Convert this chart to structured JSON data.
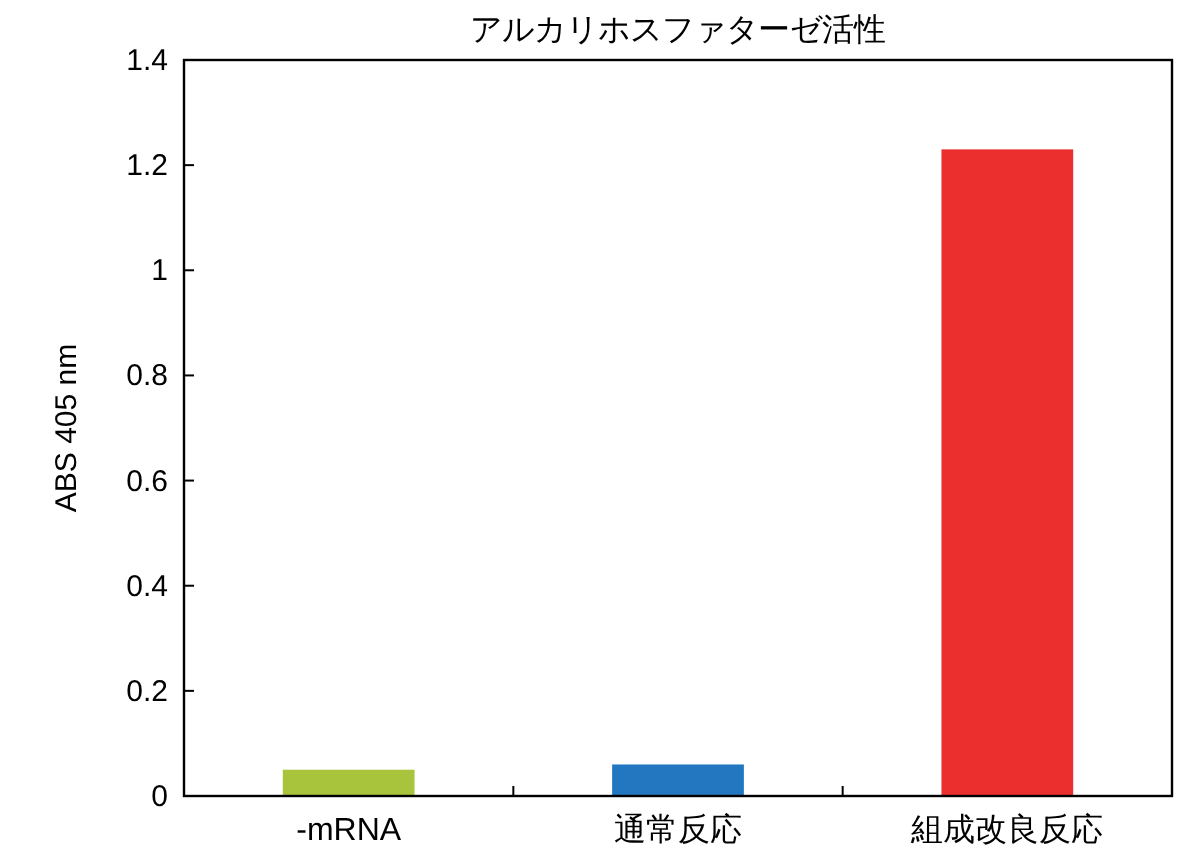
{
  "chart_data": {
    "type": "bar",
    "title": "アルカリホスファターゼ活性",
    "ylabel": "ABS 405 nm",
    "categories": [
      "-mRNA",
      "通常反応",
      "組成改良反応"
    ],
    "values": [
      0.05,
      0.06,
      1.23
    ],
    "colors": [
      "#a8c43c",
      "#2277c0",
      "#eb2f2f"
    ],
    "ylim": [
      0,
      1.4
    ],
    "yticks": [
      0,
      0.2,
      0.4,
      0.6,
      0.8,
      1,
      1.2,
      1.4
    ],
    "grid": false
  }
}
